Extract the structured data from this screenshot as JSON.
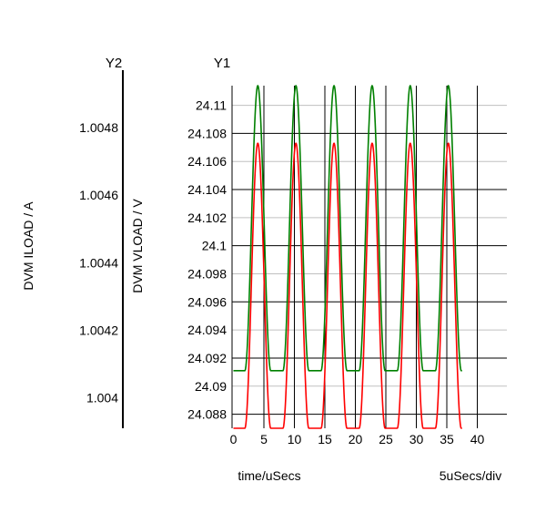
{
  "chart_data": {
    "type": "line",
    "y1_header": "Y1",
    "y2_header": "Y2",
    "xlabel": "time/uSecs",
    "x_div_label": "5uSecs/div",
    "y1_label": "DVM VLOAD / V",
    "y2_label": "DVM ILOAD / A",
    "x_ticks": [
      "0",
      "5",
      "10",
      "15",
      "20",
      "25",
      "30",
      "35",
      "40"
    ],
    "y1_ticks": [
      "24.11",
      "24.108",
      "24.106",
      "24.104",
      "24.102",
      "24.1",
      "24.098",
      "24.096",
      "24.094",
      "24.092",
      "24.09",
      "24.088"
    ],
    "y2_ticks": [
      "1.0048",
      "1.0046",
      "1.0044",
      "1.0042",
      "1.004"
    ],
    "xlim": [
      0,
      40
    ],
    "y1lim": [
      24.087,
      24.1114
    ],
    "y2lim": [
      1.00391,
      1.00497
    ],
    "grid": true,
    "series": [
      {
        "axis": "y1",
        "color": "#008000",
        "period": 6.25,
        "phase": 4.0,
        "min": 24.0911,
        "max": 24.1114,
        "x_end": 37.5
      },
      {
        "axis": "y1",
        "color": "#ff0000",
        "period": 6.25,
        "phase": 4.0,
        "min": 24.087,
        "max": 24.1073,
        "x_end": 37.5
      }
    ]
  }
}
